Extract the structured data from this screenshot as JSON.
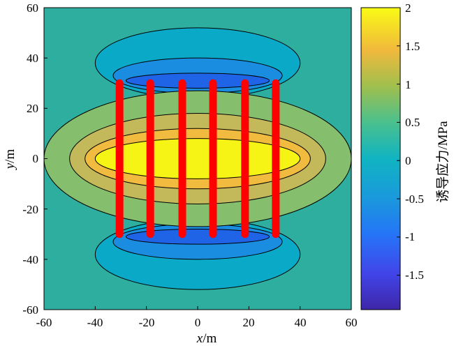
{
  "chart_data": {
    "type": "heatmap",
    "title": "",
    "xlabel_var": "x",
    "xlabel_unit": "/m",
    "ylabel_var": "y",
    "ylabel_unit": "/m",
    "xlim": [
      -60,
      60
    ],
    "ylim": [
      -60,
      60
    ],
    "x_ticks": [
      "-60",
      "-40",
      "-20",
      "0",
      "20",
      "40",
      "60"
    ],
    "y_ticks": [
      "60",
      "40",
      "20",
      "0",
      "-20",
      "-40",
      "-60"
    ],
    "colorbar": {
      "label": "诱导应力/MPa",
      "range": [
        -1.95,
        2.0
      ],
      "ticks": [
        "2",
        "1.5",
        "1",
        "0.5",
        "0",
        "-0.5",
        "-1",
        "-1.5"
      ],
      "colormap": "parula"
    },
    "fractures": {
      "color": "#ff0000",
      "x_positions": [
        -30.5,
        -18.5,
        -6,
        6,
        18.5,
        30.5
      ],
      "y_range": [
        -30,
        30
      ]
    },
    "contour_levels": [
      {
        "level": -1.5,
        "color": "#1f63e6"
      },
      {
        "level": -1.0,
        "color": "#1a8de1"
      },
      {
        "level": -0.5,
        "color": "#0ba9c8"
      },
      {
        "level": 0.0,
        "color": "#3ab8a3"
      },
      {
        "level": 0.5,
        "color": "#85be6c"
      },
      {
        "level": 1.0,
        "color": "#c3b85a"
      },
      {
        "level": 1.5,
        "color": "#f0bb3e"
      },
      {
        "level": 2.0,
        "color": "#f6f414"
      }
    ]
  }
}
